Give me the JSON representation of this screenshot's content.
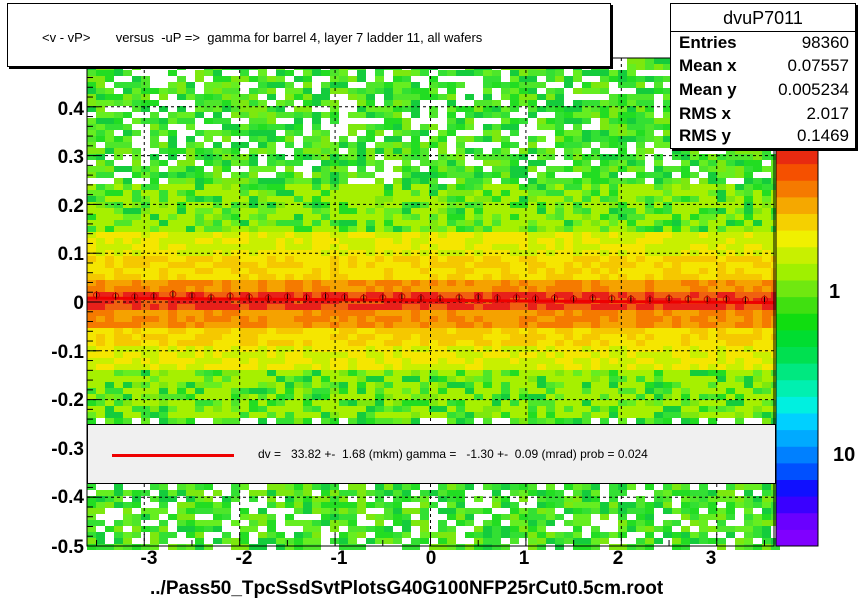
{
  "chart_data": {
    "type": "heatmap",
    "title": "<v - vP>       versus  -uP =>  gamma for barrel 4, layer 7 ladder 11, all wafers",
    "xlabel": "../Pass50_TpcSsdSvtPlotsG40G100NFP25rCut0.5cm.root",
    "ylabel": "",
    "xlim": [
      -3.6,
      3.6
    ],
    "ylim": [
      -0.5,
      0.5
    ],
    "x_ticks": [
      "-3",
      "-2",
      "-1",
      "0",
      "1",
      "2",
      "3"
    ],
    "y_ticks": [
      "-0.5",
      "-0.4",
      "-0.3",
      "-0.2",
      "-0.1",
      "0",
      "0.1",
      "0.2",
      "0.3",
      "0.4"
    ],
    "z_ticks": [
      "1",
      "10"
    ],
    "z_scale": "log",
    "grid": true,
    "stats": {
      "name": "dvuP7011",
      "rows": [
        {
          "label": "Entries",
          "value": "98360"
        },
        {
          "label": "Mean x",
          "value": "0.07557"
        },
        {
          "label": "Mean y",
          "value": "0.005234"
        },
        {
          "label": "RMS x",
          "value": "2.017"
        },
        {
          "label": "RMS y",
          "value": "0.1469"
        }
      ]
    },
    "fit": {
      "text": "dv =   33.82 +-  1.68 (mkm) gamma =   -1.30 +-  0.09 (mrad) prob = 0.024",
      "color": "#ee0000"
    },
    "profile_points": {
      "x": [
        -3.5,
        -3.3,
        -3.1,
        -2.9,
        -2.7,
        -2.5,
        -2.3,
        -2.1,
        -1.9,
        -1.7,
        -1.5,
        -1.3,
        -1.1,
        -0.9,
        -0.7,
        -0.5,
        -0.3,
        -0.1,
        0.1,
        0.3,
        0.5,
        0.7,
        0.9,
        1.1,
        1.3,
        1.5,
        1.7,
        1.9,
        2.1,
        2.3,
        2.5,
        2.7,
        2.9,
        3.1,
        3.3,
        3.5
      ],
      "y": [
        0.014,
        0.012,
        0.011,
        0.012,
        0.016,
        0.013,
        0.009,
        0.012,
        0.01,
        0.008,
        0.011,
        0.009,
        0.012,
        0.01,
        0.008,
        0.009,
        0.011,
        0.008,
        0.007,
        0.009,
        0.01,
        0.008,
        0.009,
        0.007,
        0.008,
        0.006,
        0.008,
        0.007,
        0.006,
        0.005,
        0.007,
        0.006,
        0.005,
        0.006,
        0.004,
        0.005
      ]
    }
  },
  "colors": {
    "band_core": "#e8201a",
    "band_mid": "#f5a200",
    "band_outer": "#f5e600",
    "background_fill": "#22dd22",
    "fit_line": "#ee0000",
    "marker": "#cc0000"
  }
}
